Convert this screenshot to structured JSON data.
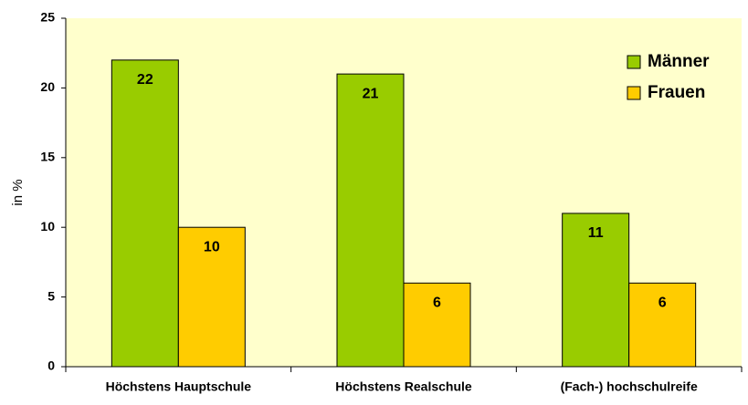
{
  "chart_data": {
    "type": "bar",
    "categories": [
      "Höchstens Hauptschule",
      "Höchstens Realschule",
      "(Fach-) hochschulreife"
    ],
    "series": [
      {
        "name": "Männer",
        "color": "#99cc00",
        "values": [
          22,
          21,
          11
        ]
      },
      {
        "name": "Frauen",
        "color": "#ffcc00",
        "values": [
          10,
          6,
          6
        ]
      }
    ],
    "ylabel": "in %",
    "ylim": [
      0,
      25
    ],
    "yticks": [
      0,
      5,
      10,
      15,
      20,
      25
    ],
    "grid": false,
    "legend": "top-right",
    "background": "#ffffcc"
  }
}
